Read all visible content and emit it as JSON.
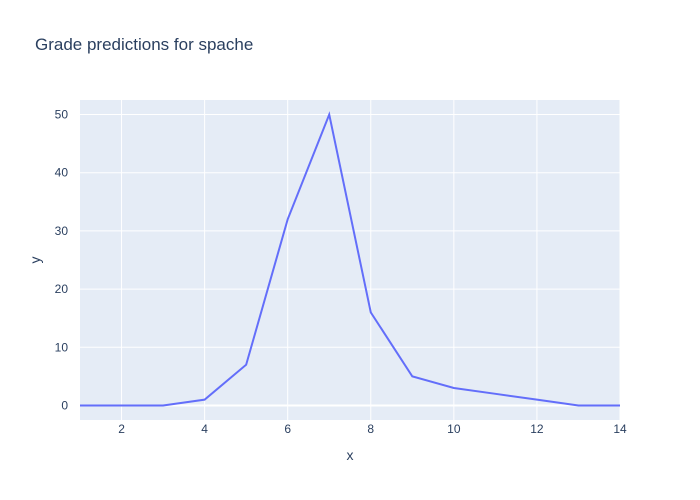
{
  "chart_data": {
    "type": "line",
    "title": "Grade predictions for spache",
    "xlabel": "x",
    "ylabel": "y",
    "xlim": [
      1,
      14
    ],
    "ylim": [
      -2.5,
      52.5
    ],
    "x_ticks": [
      2,
      4,
      6,
      8,
      10,
      12,
      14
    ],
    "y_ticks": [
      0,
      10,
      20,
      30,
      40,
      50
    ],
    "grid": true,
    "series": [
      {
        "x": [
          1,
          2,
          3,
          4,
          5,
          6,
          7,
          8,
          9,
          10,
          11,
          12,
          13,
          14
        ],
        "y": [
          0,
          0,
          0,
          1,
          7,
          32,
          50,
          16,
          5,
          3,
          2,
          1,
          0,
          0
        ]
      }
    ]
  },
  "colors": {
    "plot_bg": "#e5ecf6",
    "grid": "#ffffff",
    "line": "#636efa",
    "text": "#2a3f5f"
  }
}
